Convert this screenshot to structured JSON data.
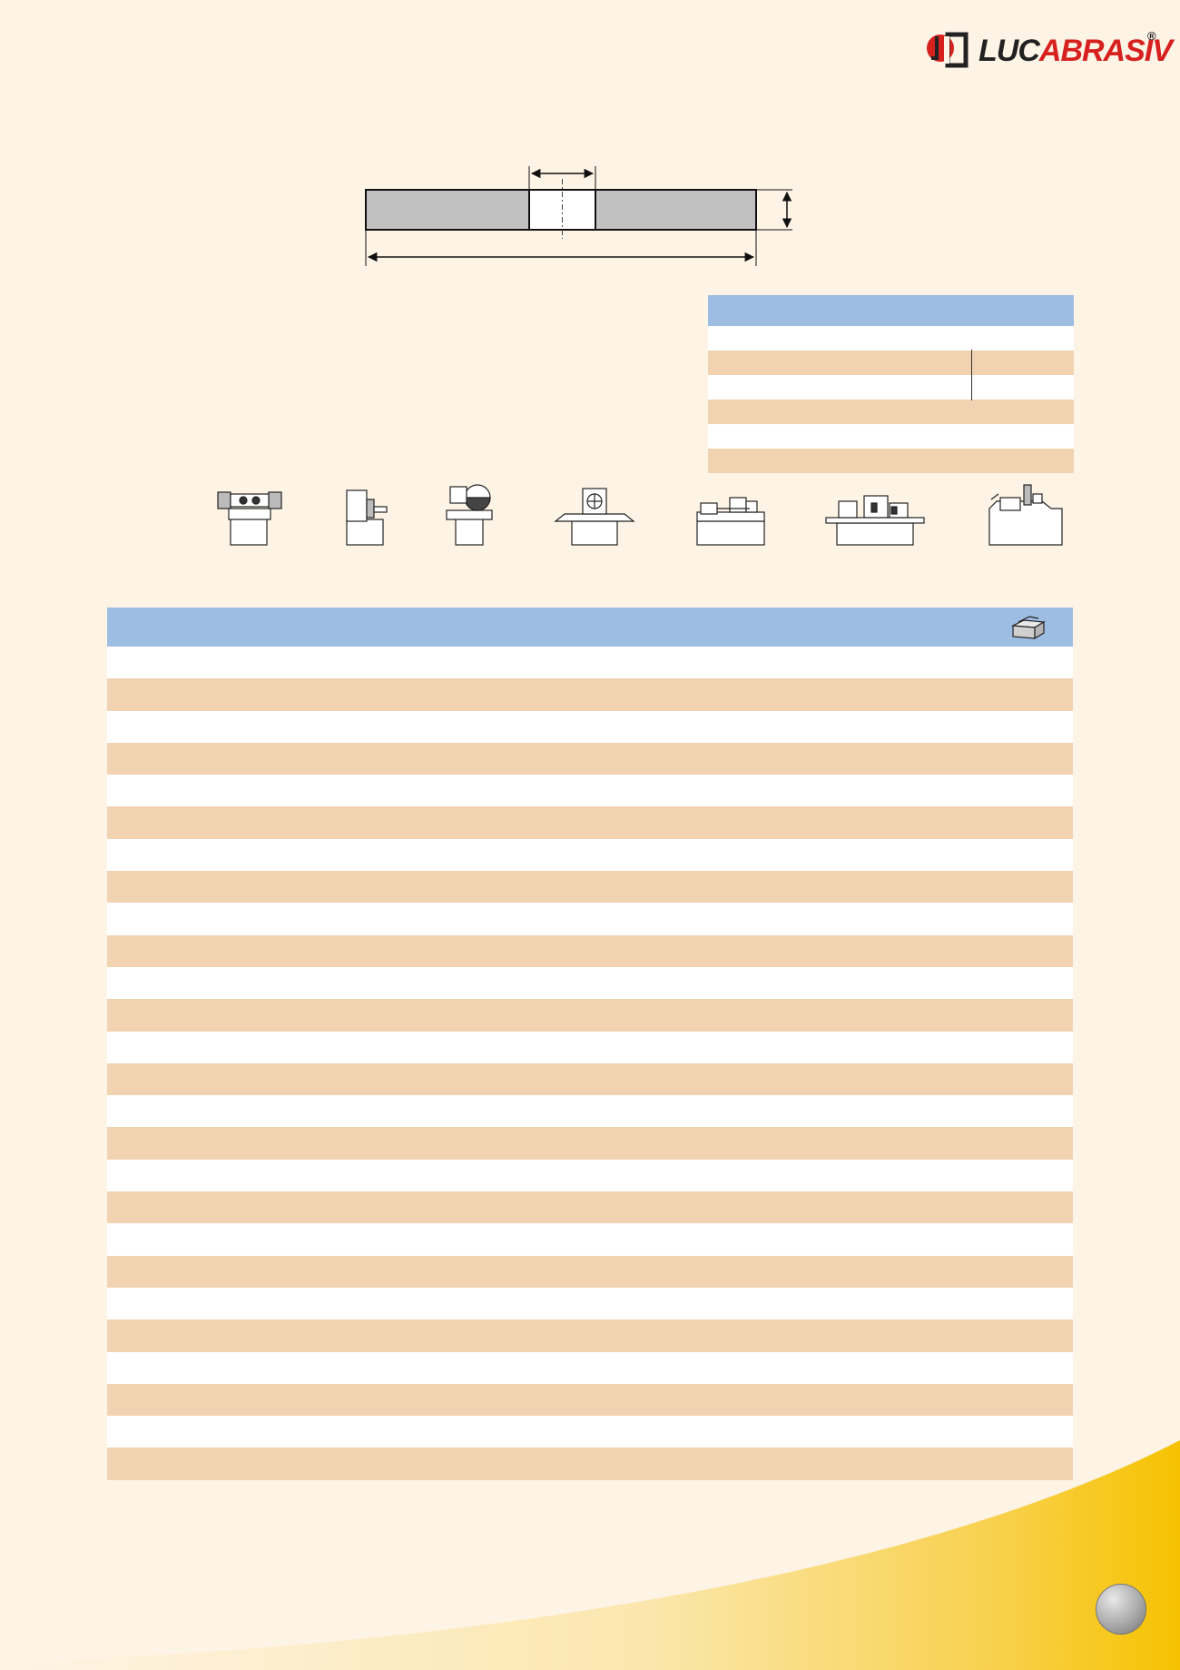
{
  "header": {
    "logo_text_left": "LUC",
    "logo_text_right": "ABRASIV",
    "logo_registered": "®"
  },
  "colors": {
    "background": "#fef4e6",
    "header_blue": "#9dbde3",
    "row_peach": "#f1d3b1",
    "row_white": "#ffffff",
    "accent_yellow": "#f7c51e",
    "logo_red": "#d6211f"
  },
  "icons": {
    "machines": [
      "bench-grinder-icon",
      "pedestal-grinder-icon",
      "cutoff-grinder-icon",
      "surface-grinder-icon",
      "cylindrical-grinder-icon",
      "universal-grinder-icon",
      "cnc-grinder-icon"
    ],
    "box": "box-icon",
    "page_marker": "page-circle"
  },
  "spec_table": {
    "rows": [
      "head",
      "white",
      "peach-split",
      "white-split",
      "peach",
      "white",
      "peach"
    ]
  },
  "main_table": {
    "row_count": 26
  }
}
